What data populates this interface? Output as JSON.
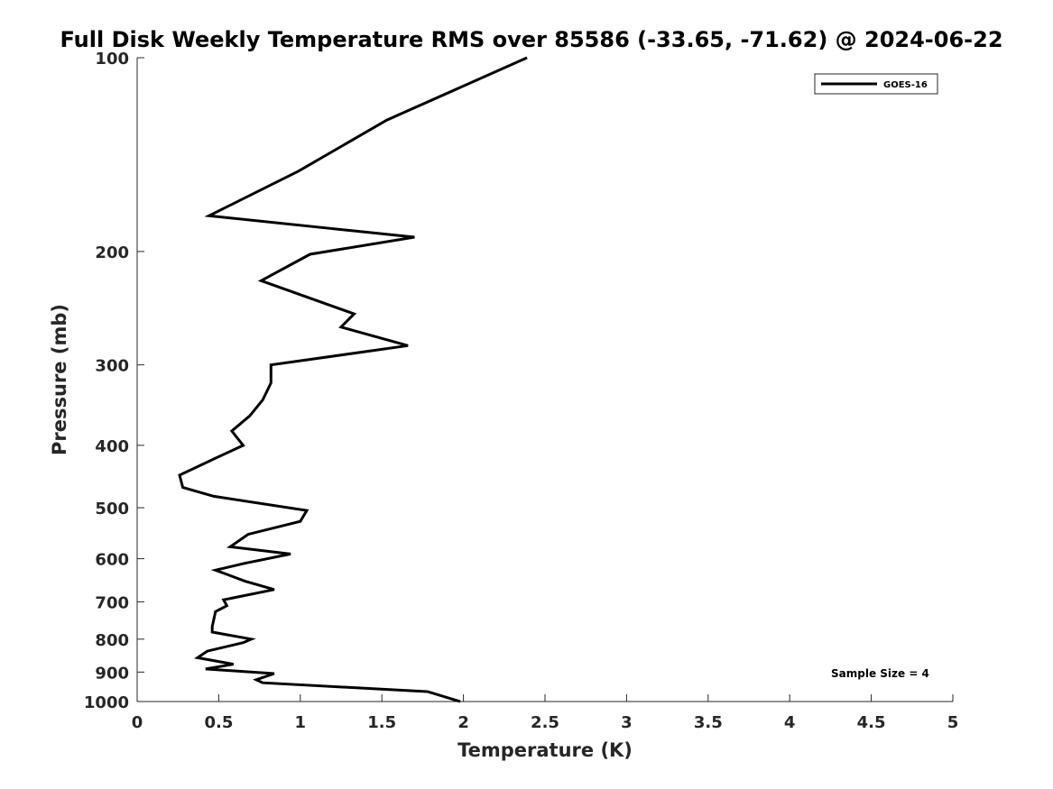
{
  "chart_data": {
    "type": "line",
    "title": "Full Disk Weekly Temperature RMS over 85586 (-33.65, -71.62) @ 2024-06-22",
    "xlabel": "Temperature (K)",
    "ylabel": "Pressure (mb)",
    "xlim": [
      0,
      5
    ],
    "ylim": [
      100,
      1000
    ],
    "y_scale": "log",
    "y_reversed": true,
    "grid": false,
    "legend_position": "top-right",
    "x_ticks": [
      0,
      0.5,
      1,
      1.5,
      2,
      2.5,
      3,
      3.5,
      4,
      4.5,
      5
    ],
    "x_tick_labels": [
      "0",
      "0.5",
      "1",
      "1.5",
      "2",
      "2.5",
      "3",
      "3.5",
      "4",
      "4.5",
      "5"
    ],
    "y_ticks": [
      100,
      200,
      300,
      400,
      500,
      600,
      700,
      800,
      900,
      1000
    ],
    "y_tick_labels": [
      "100",
      "200",
      "300",
      "400",
      "500",
      "600",
      "700",
      "800",
      "900",
      "1000"
    ],
    "series": [
      {
        "name": "GOES-16",
        "color": "#000000",
        "points": [
          [
            2.39,
            100
          ],
          [
            1.53,
            125
          ],
          [
            0.99,
            150
          ],
          [
            0.44,
            176
          ],
          [
            1.7,
            190
          ],
          [
            1.06,
            202
          ],
          [
            0.76,
            222
          ],
          [
            1.33,
            250
          ],
          [
            1.25,
            262
          ],
          [
            1.66,
            280
          ],
          [
            0.82,
            300
          ],
          [
            0.82,
            320
          ],
          [
            0.77,
            340
          ],
          [
            0.69,
            360
          ],
          [
            0.58,
            380
          ],
          [
            0.65,
            400
          ],
          [
            0.47,
            420
          ],
          [
            0.26,
            445
          ],
          [
            0.28,
            465
          ],
          [
            0.47,
            480
          ],
          [
            1.04,
            505
          ],
          [
            1.0,
            525
          ],
          [
            0.68,
            550
          ],
          [
            0.57,
            575
          ],
          [
            0.94,
            590
          ],
          [
            0.66,
            610
          ],
          [
            0.48,
            625
          ],
          [
            0.66,
            650
          ],
          [
            0.84,
            670
          ],
          [
            0.53,
            695
          ],
          [
            0.55,
            710
          ],
          [
            0.48,
            725
          ],
          [
            0.47,
            745
          ],
          [
            0.46,
            765
          ],
          [
            0.46,
            780
          ],
          [
            0.7,
            800
          ],
          [
            0.65,
            810
          ],
          [
            0.43,
            835
          ],
          [
            0.37,
            855
          ],
          [
            0.59,
            875
          ],
          [
            0.42,
            890
          ],
          [
            0.84,
            905
          ],
          [
            0.73,
            925
          ],
          [
            0.77,
            935
          ],
          [
            1.78,
            965
          ],
          [
            1.98,
            1000
          ]
        ]
      }
    ],
    "annotations": [
      "Sample Size = 4"
    ]
  }
}
